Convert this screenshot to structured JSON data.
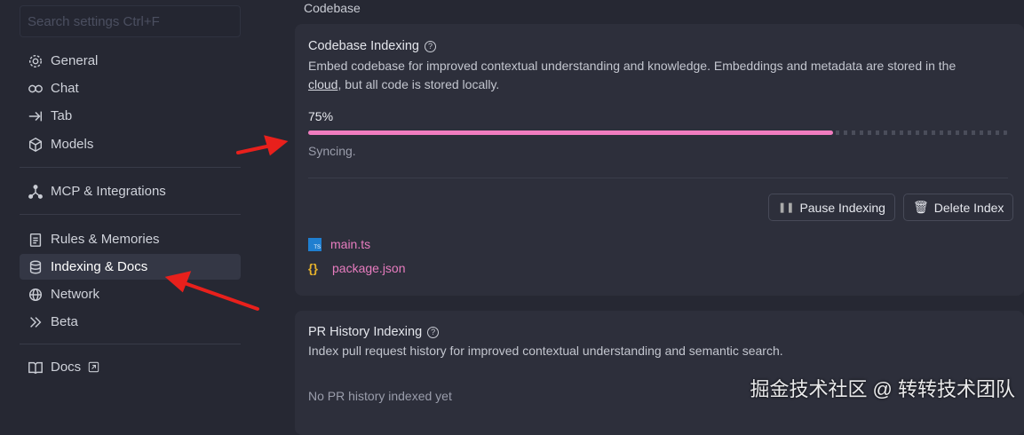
{
  "sidebar": {
    "search_placeholder": "Search settings Ctrl+F",
    "items": [
      {
        "label": "General",
        "icon": "gear-icon"
      },
      {
        "label": "Chat",
        "icon": "infinity-icon"
      },
      {
        "label": "Tab",
        "icon": "arrow-right-to-bar-icon"
      },
      {
        "label": "Models",
        "icon": "cube-icon"
      },
      {
        "label": "MCP & Integrations",
        "icon": "nodes-icon"
      },
      {
        "label": "Rules & Memories",
        "icon": "clipboard-icon"
      },
      {
        "label": "Indexing & Docs",
        "icon": "database-icon",
        "active": true
      },
      {
        "label": "Network",
        "icon": "globe-icon"
      },
      {
        "label": "Beta",
        "icon": "chevrons-right-icon"
      },
      {
        "label": "Docs",
        "icon": "book-icon",
        "external": true
      }
    ]
  },
  "main": {
    "section": "Codebase",
    "codebase": {
      "title": "Codebase Indexing",
      "desc_pre": "Embed codebase for improved contextual understanding and knowledge. Embeddings and metadata are stored in the ",
      "desc_link": "cloud",
      "desc_post": ", but all code is stored locally.",
      "progress_label": "75%",
      "progress": 75,
      "status": "Syncing.",
      "pause_label": "Pause Indexing",
      "delete_label": "Delete Index",
      "files": [
        {
          "name": "main.ts",
          "icon": "typescript-file-icon"
        },
        {
          "name": "package.json",
          "icon": "json-file-icon"
        }
      ]
    },
    "pr": {
      "title": "PR History Indexing",
      "desc": "Index pull request history for improved contextual understanding and semantic search.",
      "empty": "No PR history indexed yet"
    }
  },
  "watermark": "掘金技术社区 @ 转转技术团队",
  "colors": {
    "accent": "#f07cbf",
    "annotation": "#e8201c"
  }
}
